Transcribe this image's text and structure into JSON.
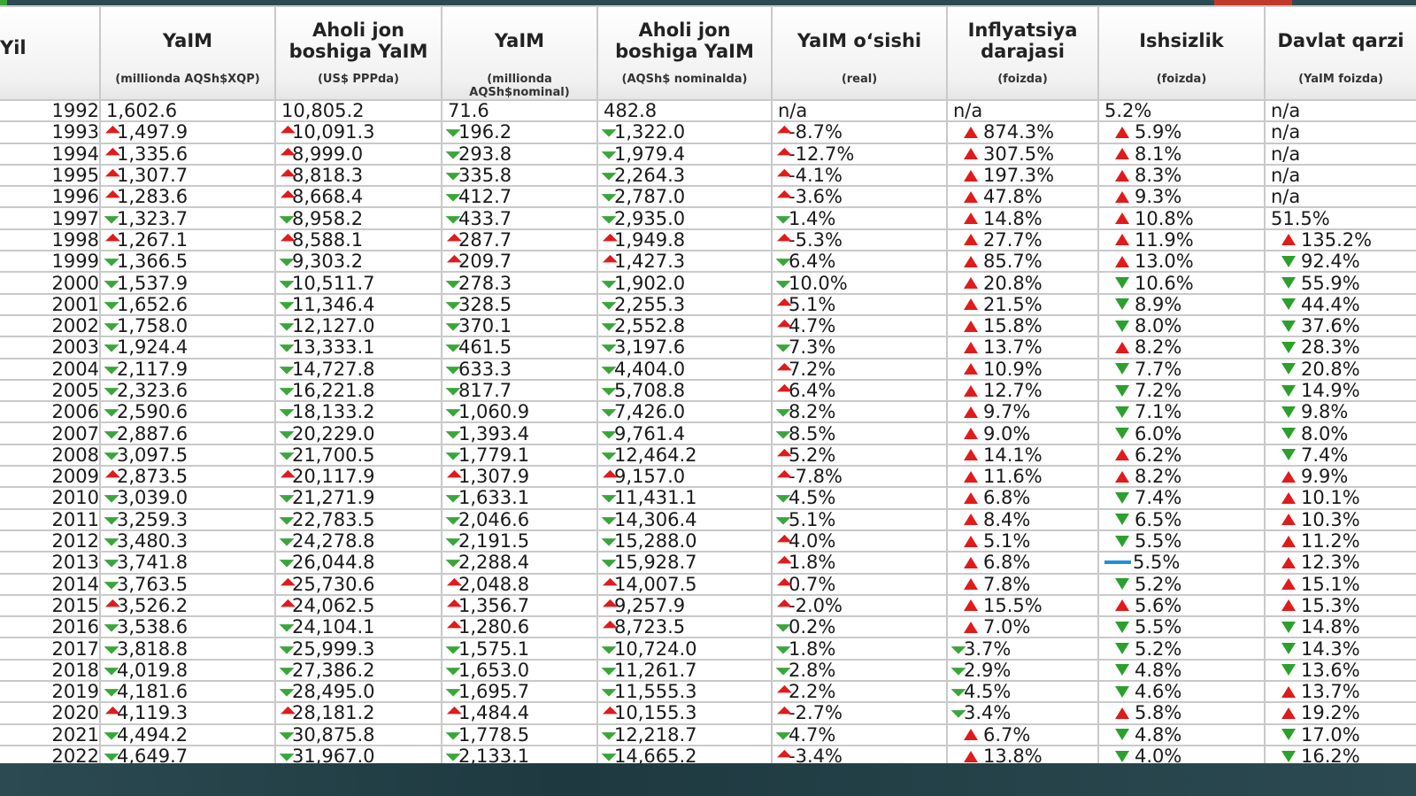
{
  "headers": [
    {
      "title": "Yil",
      "sub": ""
    },
    {
      "title": "YaIM",
      "sub": "(millionda AQSh$XQP)"
    },
    {
      "title": "Aholi jon boshiga YaIM",
      "sub": "(US$ PPPda)"
    },
    {
      "title": "YaIM",
      "sub": "(millionda AQSh$nominal)"
    },
    {
      "title": "Aholi jon boshiga YaIM",
      "sub": "(AQSh$ nominalda)"
    },
    {
      "title": "YaIM o‘sishi",
      "sub": "(real)"
    },
    {
      "title": "Inflyatsiya darajasi",
      "sub": "(foizda)"
    },
    {
      "title": "Ishsizlik",
      "sub": "(foizda)"
    },
    {
      "title": "Davlat qarzi",
      "sub": "(YaIM foizda)"
    }
  ],
  "indicator_colors": {
    "up_green": "#3aa63a",
    "down_red": "#e01b1b",
    "flat_blue": "#1f8fe0"
  },
  "rows": [
    {
      "year": "1992",
      "cells": [
        [
          "1,602.6",
          "none"
        ],
        [
          "10,805.2",
          "none"
        ],
        [
          "71.6",
          "none"
        ],
        [
          "482.8",
          "none"
        ],
        [
          "n/a",
          "none"
        ],
        [
          "n/a",
          "none"
        ],
        [
          "5.2%",
          "none"
        ],
        [
          "n/a",
          "none"
        ]
      ]
    },
    {
      "year": "1993",
      "cells": [
        [
          "1,497.9",
          "corner-down"
        ],
        [
          "10,091.3",
          "corner-down"
        ],
        [
          "196.2",
          "corner-up"
        ],
        [
          "1,322.0",
          "corner-up"
        ],
        [
          "-8.7%",
          "corner-down"
        ],
        [
          "874.3%",
          "tri-up"
        ],
        [
          "5.9%",
          "tri-up"
        ],
        [
          "n/a",
          "none"
        ]
      ]
    },
    {
      "year": "1994",
      "cells": [
        [
          "1,335.6",
          "corner-down"
        ],
        [
          "8,999.0",
          "corner-down"
        ],
        [
          "293.8",
          "corner-up"
        ],
        [
          "1,979.4",
          "corner-up"
        ],
        [
          "-12.7%",
          "corner-down"
        ],
        [
          "307.5%",
          "tri-up"
        ],
        [
          "8.1%",
          "tri-up"
        ],
        [
          "n/a",
          "none"
        ]
      ]
    },
    {
      "year": "1995",
      "cells": [
        [
          "1,307.7",
          "corner-down"
        ],
        [
          "8,818.3",
          "corner-down"
        ],
        [
          "335.8",
          "corner-up"
        ],
        [
          "2,264.3",
          "corner-up"
        ],
        [
          "-4.1%",
          "corner-down"
        ],
        [
          "197.3%",
          "tri-up"
        ],
        [
          "8.3%",
          "tri-up"
        ],
        [
          "n/a",
          "none"
        ]
      ]
    },
    {
      "year": "1996",
      "cells": [
        [
          "1,283.6",
          "corner-down"
        ],
        [
          "8,668.4",
          "corner-down"
        ],
        [
          "412.7",
          "corner-up"
        ],
        [
          "2,787.0",
          "corner-up"
        ],
        [
          "-3.6%",
          "corner-down"
        ],
        [
          "47.8%",
          "tri-up"
        ],
        [
          "9.3%",
          "tri-up"
        ],
        [
          "n/a",
          "none"
        ]
      ]
    },
    {
      "year": "1997",
      "cells": [
        [
          "1,323.7",
          "corner-up"
        ],
        [
          "8,958.2",
          "corner-up"
        ],
        [
          "433.7",
          "corner-up"
        ],
        [
          "2,935.0",
          "corner-up"
        ],
        [
          "1.4%",
          "corner-up"
        ],
        [
          "14.8%",
          "tri-up"
        ],
        [
          "10.8%",
          "tri-up"
        ],
        [
          "51.5%",
          "none"
        ]
      ]
    },
    {
      "year": "1998",
      "cells": [
        [
          "1,267.1",
          "corner-down"
        ],
        [
          "8,588.1",
          "corner-down"
        ],
        [
          "287.7",
          "corner-down"
        ],
        [
          "1,949.8",
          "corner-down"
        ],
        [
          "-5.3%",
          "corner-down"
        ],
        [
          "27.7%",
          "tri-up"
        ],
        [
          "11.9%",
          "tri-up"
        ],
        [
          "135.2%",
          "tri-up"
        ]
      ]
    },
    {
      "year": "1999",
      "cells": [
        [
          "1,366.5",
          "corner-up"
        ],
        [
          "9,303.2",
          "corner-up"
        ],
        [
          "209.7",
          "corner-down"
        ],
        [
          "1,427.3",
          "corner-down"
        ],
        [
          "6.4%",
          "corner-up"
        ],
        [
          "85.7%",
          "tri-up"
        ],
        [
          "13.0%",
          "tri-up"
        ],
        [
          "92.4%",
          "tri-down"
        ]
      ]
    },
    {
      "year": "2000",
      "cells": [
        [
          "1,537.9",
          "corner-up"
        ],
        [
          "10,511.7",
          "corner-up"
        ],
        [
          "278.3",
          "corner-up"
        ],
        [
          "1,902.0",
          "corner-up"
        ],
        [
          "10.0%",
          "corner-up"
        ],
        [
          "20.8%",
          "tri-up"
        ],
        [
          "10.6%",
          "tri-down"
        ],
        [
          "55.9%",
          "tri-down"
        ]
      ]
    },
    {
      "year": "2001",
      "cells": [
        [
          "1,652.6",
          "corner-up"
        ],
        [
          "11,346.4",
          "corner-up"
        ],
        [
          "328.5",
          "corner-up"
        ],
        [
          "2,255.3",
          "corner-up"
        ],
        [
          "5.1%",
          "corner-down"
        ],
        [
          "21.5%",
          "tri-up"
        ],
        [
          "8.9%",
          "tri-down"
        ],
        [
          "44.4%",
          "tri-down"
        ]
      ]
    },
    {
      "year": "2002",
      "cells": [
        [
          "1,758.0",
          "corner-up"
        ],
        [
          "12,127.0",
          "corner-up"
        ],
        [
          "370.1",
          "corner-up"
        ],
        [
          "2,552.8",
          "corner-up"
        ],
        [
          "4.7%",
          "corner-down"
        ],
        [
          "15.8%",
          "tri-up"
        ],
        [
          "8.0%",
          "tri-down"
        ],
        [
          "37.6%",
          "tri-down"
        ]
      ]
    },
    {
      "year": "2003",
      "cells": [
        [
          "1,924.4",
          "corner-up"
        ],
        [
          "13,333.1",
          "corner-up"
        ],
        [
          "461.5",
          "corner-up"
        ],
        [
          "3,197.6",
          "corner-up"
        ],
        [
          "7.3%",
          "corner-up"
        ],
        [
          "13.7%",
          "tri-up"
        ],
        [
          "8.2%",
          "tri-up"
        ],
        [
          "28.3%",
          "tri-down"
        ]
      ]
    },
    {
      "year": "2004",
      "cells": [
        [
          "2,117.9",
          "corner-up"
        ],
        [
          "14,727.8",
          "corner-up"
        ],
        [
          "633.3",
          "corner-up"
        ],
        [
          "4,404.0",
          "corner-up"
        ],
        [
          "7.2%",
          "corner-down"
        ],
        [
          "10.9%",
          "tri-up"
        ],
        [
          "7.7%",
          "tri-down"
        ],
        [
          "20.8%",
          "tri-down"
        ]
      ]
    },
    {
      "year": "2005",
      "cells": [
        [
          "2,323.6",
          "corner-up"
        ],
        [
          "16,221.8",
          "corner-up"
        ],
        [
          "817.7",
          "corner-up"
        ],
        [
          "5,708.8",
          "corner-up"
        ],
        [
          "6.4%",
          "corner-down"
        ],
        [
          "12.7%",
          "tri-up"
        ],
        [
          "7.2%",
          "tri-down"
        ],
        [
          "14.9%",
          "tri-down"
        ]
      ]
    },
    {
      "year": "2006",
      "cells": [
        [
          "2,590.6",
          "corner-up"
        ],
        [
          "18,133.2",
          "corner-up"
        ],
        [
          "1,060.9",
          "corner-up"
        ],
        [
          "7,426.0",
          "corner-up"
        ],
        [
          "8.2%",
          "corner-up"
        ],
        [
          "9.7%",
          "tri-up"
        ],
        [
          "7.1%",
          "tri-down"
        ],
        [
          "9.8%",
          "tri-down"
        ]
      ]
    },
    {
      "year": "2007",
      "cells": [
        [
          "2,887.6",
          "corner-up"
        ],
        [
          "20,229.0",
          "corner-up"
        ],
        [
          "1,393.4",
          "corner-up"
        ],
        [
          "9,761.4",
          "corner-up"
        ],
        [
          "8.5%",
          "corner-up"
        ],
        [
          "9.0%",
          "tri-up"
        ],
        [
          "6.0%",
          "tri-down"
        ],
        [
          "8.0%",
          "tri-down"
        ]
      ]
    },
    {
      "year": "2008",
      "cells": [
        [
          "3,097.5",
          "corner-up"
        ],
        [
          "21,700.5",
          "corner-up"
        ],
        [
          "1,779.1",
          "corner-up"
        ],
        [
          "12,464.2",
          "corner-up"
        ],
        [
          "5.2%",
          "corner-down"
        ],
        [
          "14.1%",
          "tri-up"
        ],
        [
          "6.2%",
          "tri-up"
        ],
        [
          "7.4%",
          "tri-down"
        ]
      ]
    },
    {
      "year": "2009",
      "cells": [
        [
          "2,873.5",
          "corner-down"
        ],
        [
          "20,117.9",
          "corner-down"
        ],
        [
          "1,307.9",
          "corner-down"
        ],
        [
          "9,157.0",
          "corner-down"
        ],
        [
          "-7.8%",
          "corner-down"
        ],
        [
          "11.6%",
          "tri-up"
        ],
        [
          "8.2%",
          "tri-up"
        ],
        [
          "9.9%",
          "tri-up"
        ]
      ]
    },
    {
      "year": "2010",
      "cells": [
        [
          "3,039.0",
          "corner-up"
        ],
        [
          "21,271.9",
          "corner-up"
        ],
        [
          "1,633.1",
          "corner-up"
        ],
        [
          "11,431.1",
          "corner-up"
        ],
        [
          "4.5%",
          "corner-up"
        ],
        [
          "6.8%",
          "tri-up"
        ],
        [
          "7.4%",
          "tri-down"
        ],
        [
          "10.1%",
          "tri-up"
        ]
      ]
    },
    {
      "year": "2011",
      "cells": [
        [
          "3,259.3",
          "corner-up"
        ],
        [
          "22,783.5",
          "corner-up"
        ],
        [
          "2,046.6",
          "corner-up"
        ],
        [
          "14,306.4",
          "corner-up"
        ],
        [
          "5.1%",
          "corner-up"
        ],
        [
          "8.4%",
          "tri-up"
        ],
        [
          "6.5%",
          "tri-down"
        ],
        [
          "10.3%",
          "tri-up"
        ]
      ]
    },
    {
      "year": "2012",
      "cells": [
        [
          "3,480.3",
          "corner-up"
        ],
        [
          "24,278.8",
          "corner-up"
        ],
        [
          "2,191.5",
          "corner-up"
        ],
        [
          "15,288.0",
          "corner-up"
        ],
        [
          "4.0%",
          "corner-down"
        ],
        [
          "5.1%",
          "tri-up"
        ],
        [
          "5.5%",
          "tri-down"
        ],
        [
          "11.2%",
          "tri-up"
        ]
      ]
    },
    {
      "year": "2013",
      "cells": [
        [
          "3,741.8",
          "corner-up"
        ],
        [
          "26,044.8",
          "corner-up"
        ],
        [
          "2,288.4",
          "corner-up"
        ],
        [
          "15,928.7",
          "corner-up"
        ],
        [
          "1.8%",
          "corner-down"
        ],
        [
          "6.8%",
          "tri-up"
        ],
        [
          "5.5%",
          "flat"
        ],
        [
          "12.3%",
          "tri-up"
        ]
      ]
    },
    {
      "year": "2014",
      "cells": [
        [
          "3,763.5",
          "corner-up"
        ],
        [
          "25,730.6",
          "corner-down"
        ],
        [
          "2,048.8",
          "corner-down"
        ],
        [
          "14,007.5",
          "corner-down"
        ],
        [
          "0.7%",
          "corner-down"
        ],
        [
          "7.8%",
          "tri-up"
        ],
        [
          "5.2%",
          "tri-down"
        ],
        [
          "15.1%",
          "tri-up"
        ]
      ]
    },
    {
      "year": "2015",
      "cells": [
        [
          "3,526.2",
          "corner-down"
        ],
        [
          "24,062.5",
          "corner-down"
        ],
        [
          "1,356.7",
          "corner-down"
        ],
        [
          "9,257.9",
          "corner-down"
        ],
        [
          "-2.0%",
          "corner-down"
        ],
        [
          "15.5%",
          "tri-up"
        ],
        [
          "5.6%",
          "tri-up"
        ],
        [
          "15.3%",
          "tri-up"
        ]
      ]
    },
    {
      "year": "2016",
      "cells": [
        [
          "3,538.6",
          "corner-up"
        ],
        [
          "24,104.1",
          "corner-up"
        ],
        [
          "1,280.6",
          "corner-down"
        ],
        [
          "8,723.5",
          "corner-down"
        ],
        [
          "0.2%",
          "corner-up"
        ],
        [
          "7.0%",
          "tri-up"
        ],
        [
          "5.5%",
          "tri-down"
        ],
        [
          "14.8%",
          "tri-down"
        ]
      ]
    },
    {
      "year": "2017",
      "cells": [
        [
          "3,818.8",
          "corner-up"
        ],
        [
          "25,999.3",
          "corner-up"
        ],
        [
          "1,575.1",
          "corner-up"
        ],
        [
          "10,724.0",
          "corner-up"
        ],
        [
          "1.8%",
          "corner-up"
        ],
        [
          "3.7%",
          "corner-up"
        ],
        [
          "5.2%",
          "tri-down"
        ],
        [
          "14.3%",
          "tri-down"
        ]
      ]
    },
    {
      "year": "2018",
      "cells": [
        [
          "4,019.8",
          "corner-up"
        ],
        [
          "27,386.2",
          "corner-up"
        ],
        [
          "1,653.0",
          "corner-up"
        ],
        [
          "11,261.7",
          "corner-up"
        ],
        [
          "2.8%",
          "corner-up"
        ],
        [
          "2.9%",
          "corner-up"
        ],
        [
          "4.8%",
          "tri-down"
        ],
        [
          "13.6%",
          "tri-down"
        ]
      ]
    },
    {
      "year": "2019",
      "cells": [
        [
          "4,181.6",
          "corner-up"
        ],
        [
          "28,495.0",
          "corner-up"
        ],
        [
          "1,695.7",
          "corner-up"
        ],
        [
          "11,555.3",
          "corner-up"
        ],
        [
          "2.2%",
          "corner-down"
        ],
        [
          "4.5%",
          "corner-up"
        ],
        [
          "4.6%",
          "tri-down"
        ],
        [
          "13.7%",
          "tri-up"
        ]
      ]
    },
    {
      "year": "2020",
      "cells": [
        [
          "4,119.3",
          "corner-down"
        ],
        [
          "28,181.2",
          "corner-down"
        ],
        [
          "1,484.4",
          "corner-down"
        ],
        [
          "10,155.3",
          "corner-down"
        ],
        [
          "-2.7%",
          "corner-down"
        ],
        [
          "3.4%",
          "corner-up"
        ],
        [
          "5.8%",
          "tri-up"
        ],
        [
          "19.2%",
          "tri-up"
        ]
      ]
    },
    {
      "year": "2021",
      "cells": [
        [
          "4,494.2",
          "corner-up"
        ],
        [
          "30,875.8",
          "corner-up"
        ],
        [
          "1,778.5",
          "corner-up"
        ],
        [
          "12,218.7",
          "corner-up"
        ],
        [
          "4.7%",
          "corner-up"
        ],
        [
          "6.7%",
          "tri-up"
        ],
        [
          "4.8%",
          "tri-down"
        ],
        [
          "17.0%",
          "tri-down"
        ]
      ]
    },
    {
      "year": "2022",
      "cells": [
        [
          "4,649.7",
          "corner-up"
        ],
        [
          "31,967.0",
          "corner-up"
        ],
        [
          "2,133.1",
          "corner-up"
        ],
        [
          "14,665.2",
          "corner-up"
        ],
        [
          "-3.4%",
          "corner-down"
        ],
        [
          "13.8%",
          "tri-up"
        ],
        [
          "4.0%",
          "tri-down"
        ],
        [
          "16.2%",
          "tri-down"
        ]
      ]
    }
  ]
}
